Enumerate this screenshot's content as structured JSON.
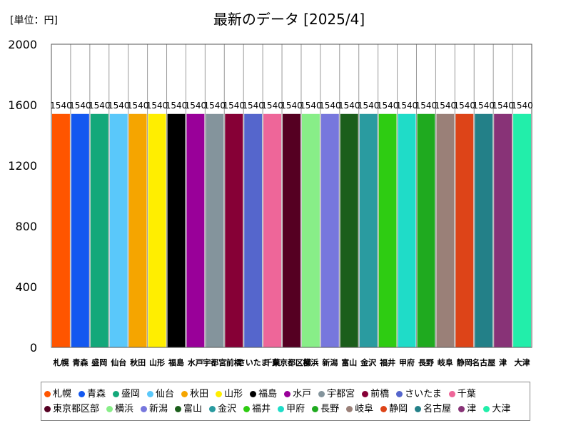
{
  "chart_data": {
    "type": "bar",
    "title": "最新のデータ [2025/4]",
    "unit_label": "[単位：円]",
    "categories": [
      "札幌",
      "青森",
      "盛岡",
      "仙台",
      "秋田",
      "山形",
      "福島",
      "水戸",
      "宇都宮",
      "前橋",
      "さいたま",
      "千葉",
      "東京都区部",
      "横浜",
      "新潟",
      "富山",
      "金沢",
      "福井",
      "甲府",
      "長野",
      "岐阜",
      "静岡",
      "名古屋",
      "津",
      "大津"
    ],
    "values": [
      1540,
      1540,
      1540,
      1540,
      1540,
      1540,
      1540,
      1540,
      1540,
      1540,
      1540,
      1540,
      1540,
      1540,
      1540,
      1540,
      1540,
      1540,
      1540,
      1540,
      1540,
      1540,
      1540,
      1540,
      1540
    ],
    "colors": [
      "#FF5500",
      "#1358F0",
      "#13A87A",
      "#5AC8FA",
      "#F5A500",
      "#FFEE00",
      "#000000",
      "#990099",
      "#84949C",
      "#860036",
      "#5566CC",
      "#EE6699",
      "#550022",
      "#88EE88",
      "#7777DD",
      "#1B5E1B",
      "#2A9BA0",
      "#2ECC12",
      "#1FDCC8",
      "#1FAA1F",
      "#9A8078",
      "#DD4418",
      "#238088",
      "#883377",
      "#22EEAA"
    ],
    "ylim": [
      0,
      2000
    ],
    "yticks": [
      0,
      400,
      800,
      1200,
      1600,
      2000
    ],
    "value_labels": true,
    "grid": {
      "x": true,
      "y": false
    },
    "legend": {
      "position": "bottom",
      "entries": [
        "札幌",
        "青森",
        "盛岡",
        "仙台",
        "秋田",
        "山形",
        "福島",
        "水戸",
        "宇都宮",
        "前橋",
        "さいたま",
        "千葉",
        "東京都区部",
        "横浜",
        "新潟",
        "富山",
        "金沢",
        "福井",
        "甲府",
        "長野",
        "岐阜",
        "静岡",
        "名古屋",
        "津",
        "大津"
      ]
    }
  }
}
